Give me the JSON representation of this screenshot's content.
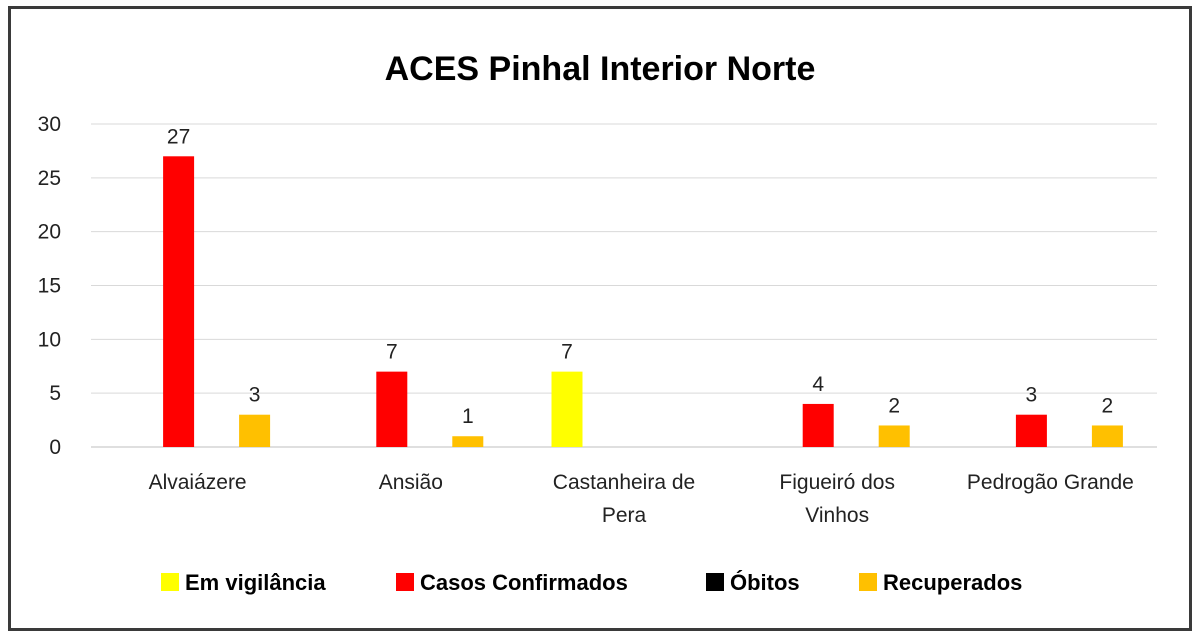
{
  "chart_data": {
    "type": "bar",
    "title": "ACES Pinhal Interior Norte",
    "xlabel": "",
    "ylabel": "",
    "ylim": [
      0,
      30
    ],
    "yticks": [
      0,
      5,
      10,
      15,
      20,
      25,
      30
    ],
    "grid": true,
    "legend_position": "bottom",
    "categories": [
      [
        "Alvaiázere"
      ],
      [
        "Ansião"
      ],
      [
        "Castanheira de",
        "Pera"
      ],
      [
        "Figueiró dos",
        "Vinhos"
      ],
      [
        "Pedrogão Grande"
      ]
    ],
    "series": [
      {
        "name": "Em vigilância",
        "color": "#ffff00",
        "values": [
          null,
          null,
          7,
          null,
          null
        ]
      },
      {
        "name": "Casos Confirmados",
        "color": "#ff0000",
        "values": [
          27,
          7,
          null,
          4,
          3
        ]
      },
      {
        "name": "Óbitos",
        "color": "#000000",
        "values": [
          null,
          null,
          null,
          null,
          null
        ]
      },
      {
        "name": "Recuperados",
        "color": "#ffc000",
        "values": [
          3,
          1,
          null,
          2,
          2
        ]
      }
    ]
  }
}
